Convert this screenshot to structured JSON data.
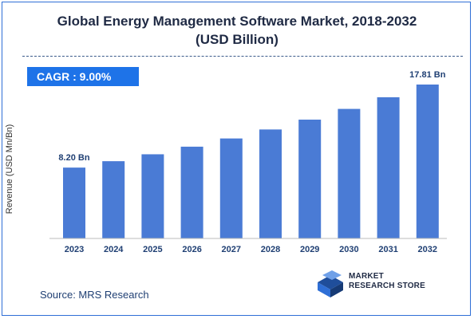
{
  "title_line1": "Global Energy Management Software Market, 2018-2032",
  "title_line2": "(USD Billion)",
  "cagr_label": "CAGR : 9.00%",
  "source": "Source: MRS Research",
  "logo": {
    "line1": "MARKET",
    "line2": "RESEARCH STORE",
    "icon": "cube-logo-icon"
  },
  "colors": {
    "bar": "#4a7bd5",
    "accent": "#1e73e8",
    "text": "#1f2a44"
  },
  "chart_data": {
    "type": "bar",
    "title": "Global Energy Management Software Market, 2018-2032 (USD Billion)",
    "ylabel": "Revenue (USD Mn/Bn)",
    "xlabel": "",
    "categories": [
      "2023",
      "2024",
      "2025",
      "2026",
      "2027",
      "2028",
      "2029",
      "2030",
      "2031",
      "2032"
    ],
    "values": [
      8.2,
      8.94,
      9.74,
      10.62,
      11.57,
      12.61,
      13.75,
      14.99,
      16.34,
      17.81
    ],
    "data_labels": {
      "first": "8.20 Bn",
      "last": "17.81 Bn"
    },
    "ylim": [
      0,
      18
    ],
    "grid": false
  }
}
